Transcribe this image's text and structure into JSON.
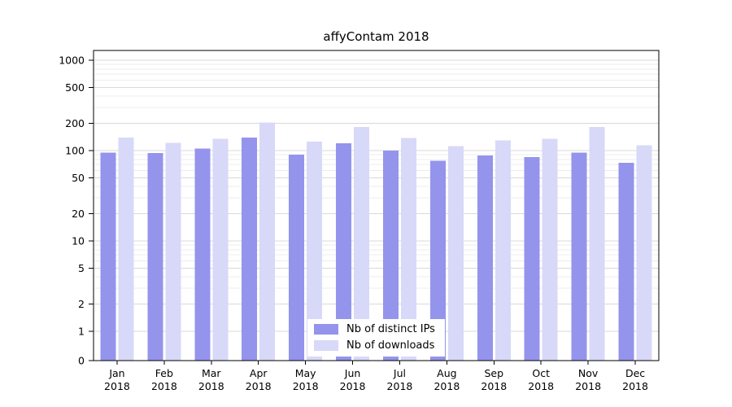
{
  "page": {
    "title": "affyContam 2018"
  },
  "chart_data": {
    "type": "bar",
    "title": "affyContam 2018",
    "categories": [
      "Jan",
      "Feb",
      "Mar",
      "Apr",
      "May",
      "Jun",
      "Jul",
      "Aug",
      "Sep",
      "Oct",
      "Nov",
      "Dec"
    ],
    "year": "2018",
    "series": [
      {
        "name": "Nb of distinct IPs",
        "color": "#9494ec",
        "values": [
          95,
          94,
          105,
          140,
          90,
          120,
          100,
          77,
          88,
          85,
          95,
          73
        ]
      },
      {
        "name": "Nb of downloads",
        "color": "#d8d8f8",
        "values": [
          140,
          122,
          135,
          205,
          125,
          183,
          138,
          112,
          130,
          135,
          182,
          115
        ]
      }
    ],
    "y_ticks": [
      0,
      1,
      2,
      5,
      10,
      20,
      50,
      100,
      200,
      500,
      1000
    ],
    "y_scale": "log",
    "ylim": [
      0,
      1000
    ],
    "grid": true,
    "xlabel": "",
    "ylabel": "",
    "legend_position": "bottom-center",
    "colors": {
      "axis": "#000000",
      "major_grid": "#d9d9d9",
      "minor_grid": "#ececec",
      "background": "#ffffff"
    }
  }
}
